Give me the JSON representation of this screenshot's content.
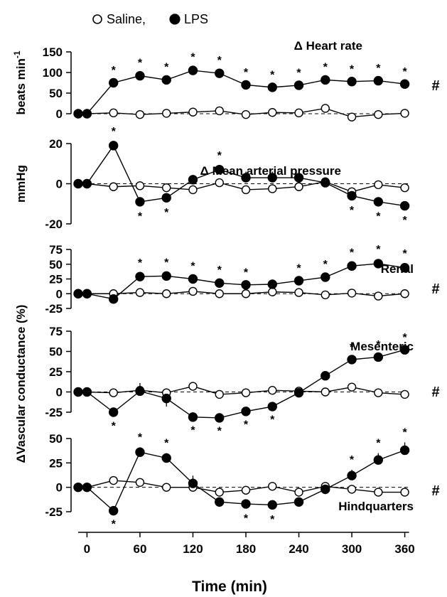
{
  "legend": {
    "saline": "Saline",
    "lps": "LPS",
    "separator": ","
  },
  "x_axis": {
    "label": "Time (min)",
    "ticks": [
      0,
      60,
      120,
      180,
      240,
      300,
      360
    ],
    "range": [
      -10,
      370
    ]
  },
  "shared_ylabel": "ΔVascular conductance (%)",
  "chart_data": [
    {
      "type": "line",
      "title": "Δ Heart rate",
      "ylabel": "beats min",
      "ylabel_sup": "-1",
      "ylim": [
        -10,
        155
      ],
      "yticks": [
        0,
        50,
        100,
        150
      ],
      "significance_mark": "#",
      "x": [
        -10,
        0,
        30,
        60,
        90,
        120,
        150,
        180,
        210,
        240,
        270,
        300,
        330,
        360
      ],
      "series": [
        {
          "name": "Saline",
          "marker": "open-circle",
          "values": [
            0,
            0,
            2,
            -2,
            1,
            4,
            7,
            -2,
            3,
            2,
            13,
            -8,
            -2,
            1
          ],
          "err": [
            0,
            0,
            2,
            3,
            3,
            4,
            4,
            3,
            3,
            3,
            6,
            6,
            3,
            3
          ]
        },
        {
          "name": "LPS",
          "marker": "filled-circle",
          "values": [
            0,
            0,
            75,
            92,
            82,
            105,
            98,
            70,
            64,
            69,
            82,
            78,
            80,
            72
          ],
          "err": [
            0,
            0,
            6,
            7,
            7,
            8,
            7,
            6,
            6,
            6,
            7,
            6,
            6,
            6
          ],
          "significant": [
            false,
            false,
            true,
            true,
            true,
            true,
            true,
            true,
            true,
            true,
            true,
            true,
            true,
            true
          ],
          "star_pos": [
            "above",
            "above",
            "above",
            "above",
            "above",
            "above",
            "above",
            "above",
            "above",
            "above",
            "above",
            "above",
            "above",
            "above"
          ]
        }
      ]
    },
    {
      "type": "line",
      "title": "Δ Mean arterial pressure",
      "ylabel": "mmHg",
      "ylim": [
        -22,
        25
      ],
      "yticks": [
        -20,
        0,
        20
      ],
      "x": [
        -10,
        0,
        30,
        60,
        90,
        120,
        150,
        180,
        210,
        240,
        270,
        300,
        330,
        360
      ],
      "series": [
        {
          "name": "Saline",
          "marker": "open-circle",
          "values": [
            0,
            0,
            -1.5,
            -1,
            -2,
            -3,
            0.5,
            -3,
            -2.5,
            -1.5,
            1,
            -4,
            -0.5,
            -2
          ],
          "err": [
            0,
            0,
            1,
            2,
            2,
            2,
            1,
            2,
            2,
            2,
            1,
            2,
            1,
            1
          ]
        },
        {
          "name": "LPS",
          "marker": "filled-circle",
          "values": [
            0,
            0,
            19,
            -9,
            -7,
            2,
            7,
            3,
            3,
            3,
            0.5,
            -6,
            -9,
            -11
          ],
          "err": [
            0,
            0,
            2,
            2,
            2,
            2,
            2,
            3,
            3,
            2,
            2,
            2,
            2,
            2
          ],
          "significant": [
            false,
            false,
            true,
            true,
            true,
            false,
            true,
            false,
            false,
            false,
            false,
            true,
            true,
            true
          ],
          "star_pos": [
            "above",
            "above",
            "above",
            "below",
            "below",
            "above",
            "above",
            "above",
            "above",
            "above",
            "above",
            "below",
            "below",
            "below"
          ]
        }
      ]
    },
    {
      "type": "line",
      "title": "Renal",
      "ylim": [
        -25,
        78
      ],
      "yticks": [
        -25,
        0,
        25,
        50,
        75
      ],
      "significance_mark": "#",
      "x": [
        -10,
        0,
        30,
        60,
        90,
        120,
        150,
        180,
        210,
        240,
        270,
        300,
        330,
        360
      ],
      "series": [
        {
          "name": "Saline",
          "marker": "open-circle",
          "values": [
            0,
            0,
            0,
            2,
            0,
            4,
            0,
            0,
            3,
            2,
            -2,
            1,
            -4,
            0
          ],
          "err": [
            0,
            0,
            2,
            2,
            2,
            2,
            2,
            2,
            2,
            2,
            2,
            2,
            2,
            2
          ]
        },
        {
          "name": "LPS",
          "marker": "filled-circle",
          "values": [
            0,
            0,
            -9,
            29,
            30,
            25,
            18,
            15,
            16,
            22,
            28,
            47,
            51,
            44
          ],
          "err": [
            0,
            0,
            4,
            6,
            6,
            5,
            5,
            4,
            4,
            4,
            5,
            6,
            7,
            7
          ],
          "significant": [
            false,
            false,
            false,
            true,
            true,
            true,
            true,
            true,
            false,
            true,
            true,
            true,
            true,
            true
          ],
          "star_pos": [
            "above",
            "above",
            "above",
            "above",
            "above",
            "above",
            "above",
            "above",
            "above",
            "above",
            "above",
            "above",
            "above",
            "above"
          ]
        }
      ]
    },
    {
      "type": "line",
      "title": "Mesenteric",
      "ylim": [
        -38,
        78
      ],
      "yticks": [
        -25,
        0,
        25,
        50,
        75
      ],
      "significance_mark": "#",
      "x": [
        -10,
        0,
        30,
        60,
        90,
        120,
        150,
        180,
        210,
        240,
        270,
        300,
        330,
        360
      ],
      "series": [
        {
          "name": "Saline",
          "marker": "open-circle",
          "values": [
            0,
            0,
            -1,
            2,
            -1,
            7,
            -3,
            -1,
            2,
            1,
            0,
            6,
            -1,
            -3
          ],
          "err": [
            0,
            0,
            3,
            5,
            4,
            5,
            4,
            4,
            4,
            4,
            4,
            4,
            3,
            4
          ]
        },
        {
          "name": "LPS",
          "marker": "filled-circle",
          "values": [
            0,
            0,
            -25,
            1,
            -8,
            -31,
            -32,
            -24,
            -18,
            -1,
            20,
            40,
            43,
            52
          ],
          "err": [
            0,
            0,
            4,
            10,
            10,
            3,
            3,
            3,
            3,
            4,
            4,
            3,
            3,
            3
          ],
          "significant": [
            false,
            false,
            true,
            false,
            false,
            true,
            true,
            true,
            true,
            false,
            false,
            true,
            true,
            true
          ],
          "star_pos": [
            "below",
            "below",
            "below",
            "below",
            "below",
            "below",
            "below",
            "below",
            "below",
            "below",
            "below",
            "above",
            "above",
            "above"
          ]
        }
      ]
    },
    {
      "type": "line",
      "title": "Hindquarters",
      "ylim": [
        -28,
        52
      ],
      "yticks": [
        -25,
        0,
        25,
        50
      ],
      "significance_mark": "#",
      "x": [
        -10,
        0,
        30,
        60,
        90,
        120,
        150,
        180,
        210,
        240,
        270,
        300,
        330,
        360
      ],
      "series": [
        {
          "name": "Saline",
          "marker": "open-circle",
          "values": [
            0,
            0,
            7,
            5,
            0,
            0,
            -5,
            -3,
            1,
            -5,
            1,
            -2,
            -5,
            -5
          ],
          "err": [
            0,
            0,
            2,
            2,
            2,
            2,
            3,
            3,
            3,
            3,
            3,
            3,
            3,
            3
          ]
        },
        {
          "name": "LPS",
          "marker": "filled-circle",
          "values": [
            0,
            0,
            -24,
            36,
            30,
            4,
            -15,
            -17,
            -18,
            -15,
            -2,
            12,
            28,
            38
          ],
          "err": [
            0,
            0,
            3,
            5,
            5,
            8,
            5,
            4,
            4,
            5,
            5,
            6,
            7,
            8
          ],
          "significant": [
            false,
            false,
            true,
            true,
            true,
            false,
            false,
            true,
            true,
            false,
            false,
            true,
            true,
            true
          ],
          "star_pos": [
            "below",
            "below",
            "below",
            "above",
            "above",
            "above",
            "below",
            "below",
            "below",
            "below",
            "below",
            "above",
            "above",
            "above"
          ]
        }
      ]
    }
  ]
}
